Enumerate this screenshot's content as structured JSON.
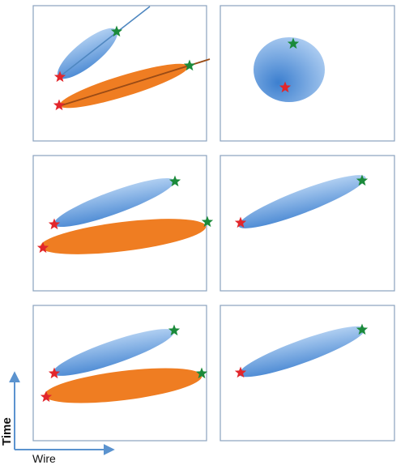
{
  "axes": {
    "x_label": "Wire",
    "y_label": "Time"
  },
  "colors": {
    "panel_border": "#8aa2bd",
    "blue_light": "#c3dcf7",
    "blue_dark": "#3c7fcf",
    "orange": "#ef7d22",
    "line_blue": "#4f87c0",
    "line_orange": "#9a4b16",
    "star_start": "#e2262b",
    "star_end": "#1b8a3a",
    "axis_arrow": "#5b93cf"
  },
  "panels": [
    {
      "row": 1,
      "side": "left",
      "clusters": [
        "blue",
        "orange"
      ],
      "fit_lines": true
    },
    {
      "row": 1,
      "side": "right",
      "clusters": [
        "blue-round"
      ],
      "fit_lines": false
    },
    {
      "row": 2,
      "side": "left",
      "clusters": [
        "blue",
        "orange"
      ],
      "fit_lines": false
    },
    {
      "row": 2,
      "side": "right",
      "clusters": [
        "blue"
      ],
      "fit_lines": false
    },
    {
      "row": 3,
      "side": "left",
      "clusters": [
        "blue",
        "orange"
      ],
      "fit_lines": false
    },
    {
      "row": 3,
      "side": "right",
      "clusters": [
        "blue"
      ],
      "fit_lines": false
    }
  ]
}
